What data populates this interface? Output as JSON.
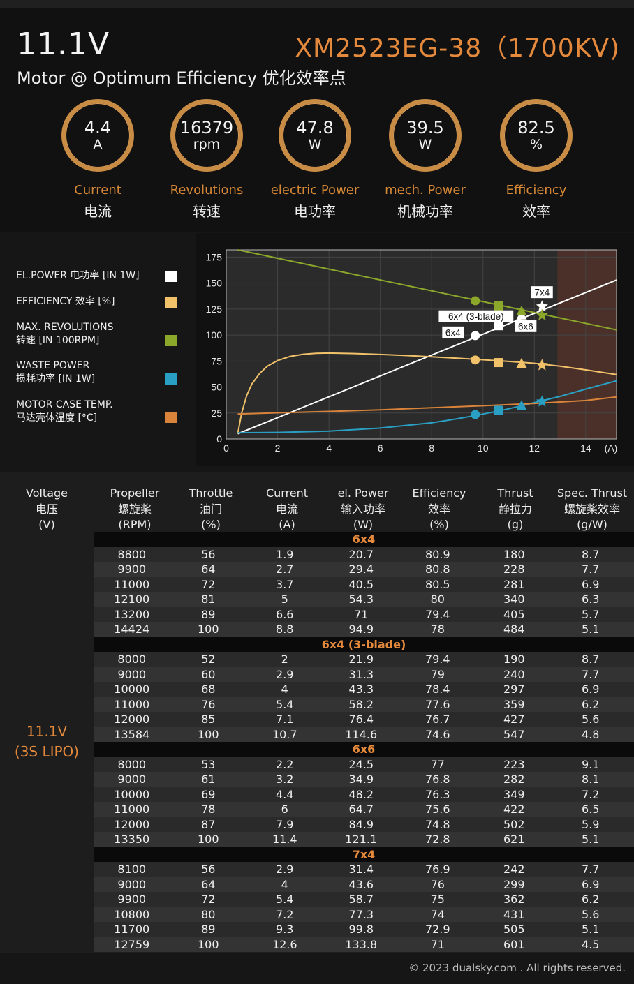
{
  "header": {
    "voltage": "11.1V",
    "model": "XM2523EG-38（1700KV)",
    "subtitle": "Motor @ Optimum Efficiency  优化效率点"
  },
  "gauges": [
    {
      "value": "4.4",
      "unit": "A",
      "label_en": "Current",
      "label_cn": "电流"
    },
    {
      "value": "16379",
      "unit": "rpm",
      "label_en": "Revolutions",
      "label_cn": "转速"
    },
    {
      "value": "47.8",
      "unit": "W",
      "label_en": "electric Power",
      "label_cn": "电功率"
    },
    {
      "value": "39.5",
      "unit": "W",
      "label_en": "mech. Power",
      "label_cn": "机械功率"
    },
    {
      "value": "82.5",
      "unit": "%",
      "label_en": "Efficiency",
      "label_cn": "效率"
    }
  ],
  "legend": [
    {
      "line1": "EL.POWER 电功率 [IN 1W]",
      "line2": "",
      "color": "#ffffff"
    },
    {
      "line1": "EFFICIENCY 效率 [%]",
      "line2": "",
      "color": "#f2c26b"
    },
    {
      "line1": "MAX. REVOLUTIONS",
      "line2": "转速 [IN 100RPM]",
      "color": "#8ca82a"
    },
    {
      "line1": "WASTE POWER",
      "line2": "损耗功率 [IN 1W]",
      "color": "#2a9fc4"
    },
    {
      "line1": "MOTOR CASE TEMP.",
      "line2": "马达壳体温度 [°C]",
      "color": "#d9843a"
    }
  ],
  "chart_data": {
    "type": "line",
    "xlim": [
      0,
      15.2
    ],
    "ylim": [
      0,
      182
    ],
    "xticks": [
      0,
      2,
      4,
      6,
      8,
      10,
      12,
      14
    ],
    "yticks": [
      0,
      25,
      50,
      75,
      100,
      125,
      150,
      175
    ],
    "x_unit_label": "(A)",
    "shaded_from_x": 12.9,
    "series": [
      {
        "color": "#ffffff",
        "x": [
          0.45,
          15.2
        ],
        "y": [
          5,
          153
        ]
      },
      {
        "color": "#f2c26b",
        "x": [
          0.45,
          0.6,
          0.8,
          1.0,
          1.3,
          1.6,
          2.0,
          2.5,
          3.0,
          3.5,
          4.0,
          4.5,
          5.0,
          6.0,
          7.0,
          8.0,
          9.0,
          10.0,
          11.0,
          12.0,
          13.0,
          14.0,
          15.2
        ],
        "y": [
          5,
          25,
          42,
          53,
          63,
          70,
          75.5,
          79.5,
          81.5,
          82.5,
          82.7,
          82.5,
          82.2,
          81.3,
          80.3,
          79.1,
          77.7,
          76.2,
          74.6,
          72.8,
          70.0,
          66.5,
          62.0
        ]
      },
      {
        "color": "#8ca82a",
        "x": [
          0.45,
          15.2
        ],
        "y": [
          182,
          105
        ]
      },
      {
        "color": "#2a9fc4",
        "x": [
          0.45,
          2,
          4,
          6,
          8,
          9,
          10,
          11,
          12,
          13,
          14,
          15.2
        ],
        "y": [
          6,
          6.3,
          7.5,
          10.5,
          15.5,
          19.5,
          24,
          29,
          35,
          41,
          48,
          56
        ]
      },
      {
        "color": "#d9843a",
        "x": [
          0.45,
          2,
          4,
          6,
          8,
          10,
          12,
          14,
          15.2
        ],
        "y": [
          24,
          25.2,
          26.5,
          28,
          30,
          32,
          34.2,
          37,
          40.5
        ]
      }
    ],
    "markers": [
      {
        "label": "6x4",
        "shape": "circle",
        "x": 9.7,
        "points": [
          {
            "y": 99.5,
            "color": "#ffffff"
          },
          {
            "y": 76,
            "color": "#f2c26b"
          },
          {
            "y": 133,
            "color": "#8ca82a"
          },
          {
            "y": 23.5,
            "color": "#2a9fc4"
          }
        ]
      },
      {
        "label": "6x4 (3-blade)",
        "shape": "square",
        "x": 10.6,
        "points": [
          {
            "y": 109,
            "color": "#ffffff"
          },
          {
            "y": 73.5,
            "color": "#f2c26b"
          },
          {
            "y": 128,
            "color": "#8ca82a"
          },
          {
            "y": 27.5,
            "color": "#2a9fc4"
          }
        ]
      },
      {
        "label": "6x6",
        "shape": "triangle",
        "x": 11.5,
        "points": [
          {
            "y": 119,
            "color": "#ffffff"
          },
          {
            "y": 72.5,
            "color": "#f2c26b"
          },
          {
            "y": 123,
            "color": "#8ca82a"
          },
          {
            "y": 32,
            "color": "#2a9fc4"
          }
        ]
      },
      {
        "label": "7x4",
        "shape": "star",
        "x": 12.3,
        "points": [
          {
            "y": 127.5,
            "color": "#ffffff"
          },
          {
            "y": 71,
            "color": "#f2c26b"
          },
          {
            "y": 119,
            "color": "#8ca82a"
          },
          {
            "y": 36,
            "color": "#2a9fc4"
          }
        ]
      }
    ]
  },
  "table": {
    "headers": [
      {
        "en": "Voltage",
        "cn": "电压",
        "unit": "(V)"
      },
      {
        "en": "Propeller",
        "cn": "螺旋桨",
        "unit": "(RPM)"
      },
      {
        "en": "Throttle",
        "cn": "油门",
        "unit": "(%)"
      },
      {
        "en": "Current",
        "cn": "电流",
        "unit": "(A)"
      },
      {
        "en": "el. Power",
        "cn": "输入功率",
        "unit": "(W)"
      },
      {
        "en": "Efficiency",
        "cn": "效率",
        "unit": "(%)"
      },
      {
        "en": "Thrust",
        "cn": "静拉力",
        "unit": "(g)"
      },
      {
        "en": "Spec. Thrust",
        "cn": "螺旋桨效率",
        "unit": "(g/W)"
      }
    ],
    "voltage_line1": "11.1V",
    "voltage_line2": "(3S LIPO)",
    "groups": [
      {
        "name": "6x4",
        "rows": [
          [
            "8800",
            "56",
            "1.9",
            "20.7",
            "80.9",
            "180",
            "8.7"
          ],
          [
            "9900",
            "64",
            "2.7",
            "29.4",
            "80.8",
            "228",
            "7.7"
          ],
          [
            "11000",
            "72",
            "3.7",
            "40.5",
            "80.5",
            "281",
            "6.9"
          ],
          [
            "12100",
            "81",
            "5",
            "54.3",
            "80",
            "340",
            "6.3"
          ],
          [
            "13200",
            "89",
            "6.6",
            "71",
            "79.4",
            "405",
            "5.7"
          ],
          [
            "14424",
            "100",
            "8.8",
            "94.9",
            "78",
            "484",
            "5.1"
          ]
        ]
      },
      {
        "name": "6x4 (3-blade)",
        "rows": [
          [
            "8000",
            "52",
            "2",
            "21.9",
            "79.4",
            "190",
            "8.7"
          ],
          [
            "9000",
            "60",
            "2.9",
            "31.3",
            "79",
            "240",
            "7.7"
          ],
          [
            "10000",
            "68",
            "4",
            "43.3",
            "78.4",
            "297",
            "6.9"
          ],
          [
            "11000",
            "76",
            "5.4",
            "58.2",
            "77.6",
            "359",
            "6.2"
          ],
          [
            "12000",
            "85",
            "7.1",
            "76.4",
            "76.7",
            "427",
            "5.6"
          ],
          [
            "13584",
            "100",
            "10.7",
            "114.6",
            "74.6",
            "547",
            "4.8"
          ]
        ]
      },
      {
        "name": "6x6",
        "rows": [
          [
            "8000",
            "53",
            "2.2",
            "24.5",
            "77",
            "223",
            "9.1"
          ],
          [
            "9000",
            "61",
            "3.2",
            "34.9",
            "76.8",
            "282",
            "8.1"
          ],
          [
            "10000",
            "69",
            "4.4",
            "48.2",
            "76.3",
            "349",
            "7.2"
          ],
          [
            "11000",
            "78",
            "6",
            "64.7",
            "75.6",
            "422",
            "6.5"
          ],
          [
            "12000",
            "87",
            "7.9",
            "84.9",
            "74.8",
            "502",
            "5.9"
          ],
          [
            "13350",
            "100",
            "11.4",
            "121.1",
            "72.8",
            "621",
            "5.1"
          ]
        ]
      },
      {
        "name": "7x4",
        "rows": [
          [
            "8100",
            "56",
            "2.9",
            "31.4",
            "76.9",
            "242",
            "7.7"
          ],
          [
            "9000",
            "64",
            "4",
            "43.6",
            "76",
            "299",
            "6.9"
          ],
          [
            "9900",
            "72",
            "5.4",
            "58.7",
            "75",
            "362",
            "6.2"
          ],
          [
            "10800",
            "80",
            "7.2",
            "77.3",
            "74",
            "431",
            "5.6"
          ],
          [
            "11700",
            "89",
            "9.3",
            "99.8",
            "72.9",
            "505",
            "5.1"
          ],
          [
            "12759",
            "100",
            "12.6",
            "133.8",
            "71",
            "601",
            "4.5"
          ]
        ]
      }
    ]
  },
  "footer": "© 2023 dualsky.com . All rights reserved."
}
